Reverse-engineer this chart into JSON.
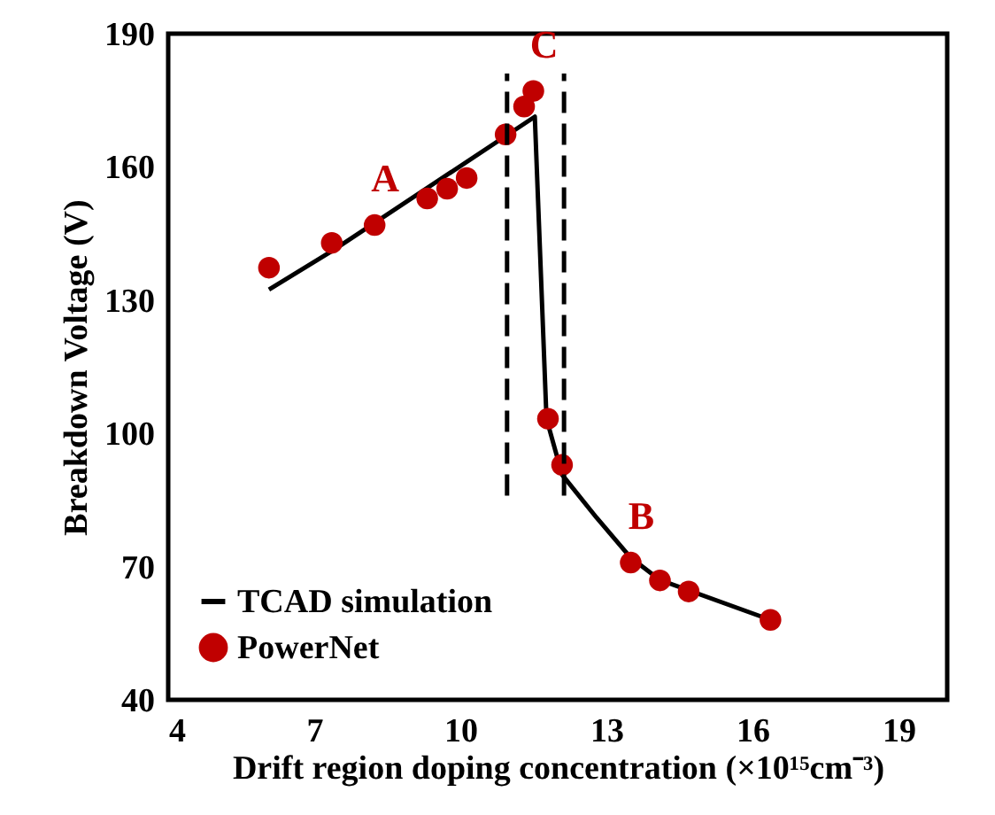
{
  "chart_data": {
    "type": "line",
    "xlabel": "Drift region doping concentration (×10¹⁵cm⁻³)",
    "ylabel": "Breakdown Voltage (V)",
    "xlim": [
      4,
      20
    ],
    "xticks": [
      4,
      7,
      10,
      13,
      16,
      19
    ],
    "ylim": [
      40,
      190
    ],
    "yticks": [
      40,
      70,
      100,
      130,
      160,
      190
    ],
    "grid": false,
    "legend": "bottom left",
    "series": [
      {
        "name": "TCAD simulation",
        "color": "#000000",
        "line_style": "solid",
        "marker": "none",
        "x": [
          6.07,
          7.4,
          11.53,
          11.77,
          12.09,
          12.8,
          13.5,
          14.1,
          16.37
        ],
        "values": [
          132.4,
          141.3,
          171.3,
          103.3,
          90.7,
          81,
          72,
          67,
          58
        ]
      },
      {
        "name": "PowerNet",
        "type": "scatter",
        "color": "#c00000",
        "marker": "circle",
        "x": [
          6.07,
          7.36,
          8.24,
          9.32,
          9.73,
          10.13,
          10.93,
          11.31,
          11.5,
          11.8,
          12.09,
          13.5,
          14.1,
          14.69,
          16.37
        ],
        "values": [
          137.3,
          142.9,
          146.9,
          152.9,
          155.1,
          157.5,
          167.3,
          173.6,
          177.1,
          103.3,
          92.9,
          70.9,
          66.9,
          64.4,
          58
        ]
      },
      {
        "type": "line",
        "color": "#000000",
        "line_style": "dashed",
        "marker": "none",
        "x": [
          10.96,
          10.96
        ],
        "values": [
          86,
          181
        ]
      },
      {
        "type": "line",
        "color": "#000000",
        "line_style": "dashed",
        "marker": "none",
        "x": [
          12.13,
          12.13
        ],
        "values": [
          86,
          181
        ]
      }
    ],
    "annotations": [
      {
        "text": "A",
        "x": 8.24,
        "y": 146.9
      },
      {
        "text": "C",
        "x": 11.5,
        "y": 177.1
      },
      {
        "text": "B",
        "x": 13.5,
        "y": 70.9
      }
    ]
  }
}
